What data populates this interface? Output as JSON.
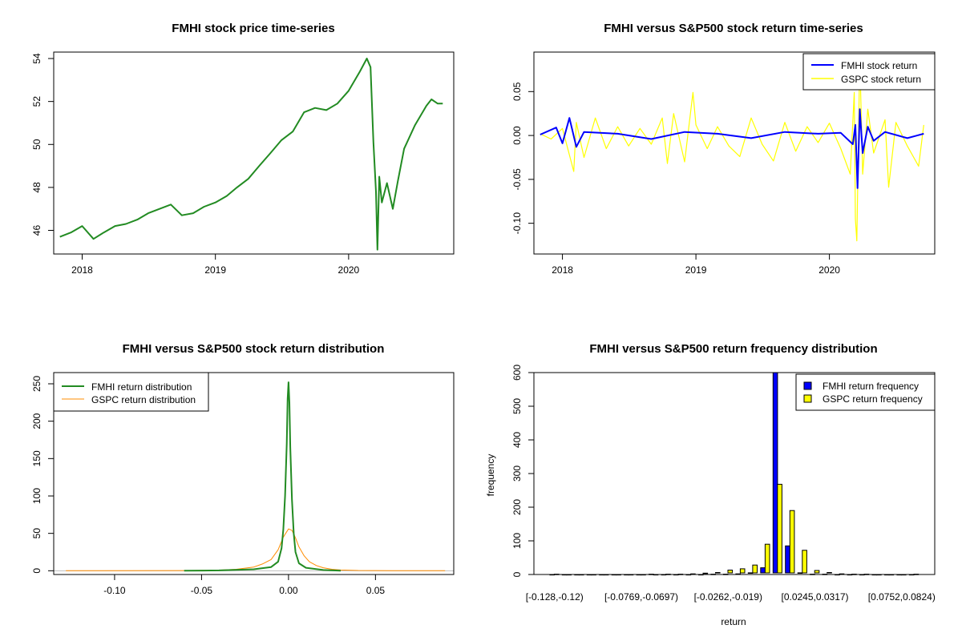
{
  "chart_data": [
    {
      "type": "line",
      "title": "FMHI stock price time-series",
      "xlabel": "",
      "ylabel": "",
      "x_ticks": [
        "2018",
        "2019",
        "2020"
      ],
      "y_ticks": [
        "46",
        "48",
        "50",
        "52",
        "54"
      ],
      "xlim": [
        "2017-10-15",
        "2020-10-15"
      ],
      "ylim": [
        44.9,
        54.3
      ],
      "series": [
        {
          "color": "#228B22",
          "x": [
            "2017-11-01",
            "2017-12-01",
            "2018-01-01",
            "2018-02-01",
            "2018-03-01",
            "2018-04-01",
            "2018-05-01",
            "2018-06-01",
            "2018-07-01",
            "2018-08-01",
            "2018-09-01",
            "2018-10-01",
            "2018-11-01",
            "2018-12-01",
            "2019-01-01",
            "2019-02-01",
            "2019-03-01",
            "2019-04-01",
            "2019-05-01",
            "2019-06-01",
            "2019-07-01",
            "2019-08-01",
            "2019-09-01",
            "2019-10-01",
            "2019-11-01",
            "2019-12-01",
            "2020-01-01",
            "2020-02-01",
            "2020-02-20",
            "2020-03-01",
            "2020-03-09",
            "2020-03-16",
            "2020-03-20",
            "2020-03-25",
            "2020-04-01",
            "2020-04-15",
            "2020-05-01",
            "2020-05-15",
            "2020-06-01",
            "2020-07-01",
            "2020-08-01",
            "2020-08-15",
            "2020-09-01",
            "2020-09-15"
          ],
          "y": [
            45.7,
            45.9,
            46.2,
            45.6,
            45.9,
            46.2,
            46.3,
            46.5,
            46.8,
            47.0,
            47.2,
            46.7,
            46.8,
            47.1,
            47.3,
            47.6,
            48.0,
            48.4,
            49.0,
            49.6,
            50.2,
            50.6,
            51.5,
            51.7,
            51.6,
            51.9,
            52.5,
            53.4,
            54.0,
            53.6,
            50.1,
            47.8,
            45.1,
            48.5,
            47.3,
            48.2,
            47.0,
            48.3,
            49.8,
            50.9,
            51.8,
            52.1,
            51.9,
            51.9
          ]
        }
      ]
    },
    {
      "type": "line",
      "title": "FMHI versus S&P500 stock return time-series",
      "xlabel": "",
      "ylabel": "",
      "x_ticks": [
        "2018",
        "2019",
        "2020"
      ],
      "y_ticks": [
        "-0.10",
        "-0.05",
        "0.00",
        "0.05"
      ],
      "xlim": [
        "2017-10-15",
        "2020-10-15"
      ],
      "ylim": [
        -0.135,
        0.095
      ],
      "legend": [
        "FMHI stock return",
        "GSPC stock return"
      ],
      "legend_position": "top-right",
      "series": [
        {
          "name": "GSPC stock return",
          "color": "#FFFF00",
          "x": [
            "2017-11-01",
            "2017-12-01",
            "2018-01-01",
            "2018-02-01",
            "2018-02-08",
            "2018-03-01",
            "2018-04-01",
            "2018-05-01",
            "2018-06-01",
            "2018-07-01",
            "2018-08-01",
            "2018-09-01",
            "2018-10-01",
            "2018-10-15",
            "2018-11-01",
            "2018-12-01",
            "2018-12-24",
            "2019-01-01",
            "2019-02-01",
            "2019-03-01",
            "2019-04-01",
            "2019-05-01",
            "2019-06-01",
            "2019-07-01",
            "2019-08-01",
            "2019-09-01",
            "2019-10-01",
            "2019-11-01",
            "2019-12-01",
            "2020-01-01",
            "2020-02-01",
            "2020-02-27",
            "2020-03-09",
            "2020-03-12",
            "2020-03-16",
            "2020-03-24",
            "2020-04-01",
            "2020-04-15",
            "2020-05-01",
            "2020-06-01",
            "2020-06-11",
            "2020-07-01",
            "2020-08-01",
            "2020-09-01",
            "2020-09-15"
          ],
          "y": [
            0.002,
            -0.004,
            0.008,
            -0.041,
            0.015,
            -0.025,
            0.02,
            -0.015,
            0.01,
            -0.012,
            0.008,
            -0.01,
            0.02,
            -0.032,
            0.025,
            -0.03,
            0.049,
            0.012,
            -0.015,
            0.01,
            -0.012,
            -0.024,
            0.02,
            -0.01,
            -0.029,
            0.015,
            -0.018,
            0.01,
            -0.008,
            0.014,
            -0.015,
            -0.044,
            0.049,
            -0.095,
            -0.12,
            0.09,
            -0.044,
            0.03,
            -0.02,
            0.018,
            -0.059,
            0.015,
            -0.012,
            -0.035,
            0.012
          ]
        },
        {
          "name": "FMHI stock return",
          "color": "#0000FF",
          "x": [
            "2017-11-01",
            "2017-12-15",
            "2018-01-01",
            "2018-01-20",
            "2018-02-08",
            "2018-03-01",
            "2018-06-01",
            "2018-09-01",
            "2018-12-01",
            "2019-03-01",
            "2019-06-01",
            "2019-09-01",
            "2019-12-01",
            "2020-02-01",
            "2020-03-05",
            "2020-03-12",
            "2020-03-18",
            "2020-03-24",
            "2020-04-01",
            "2020-04-15",
            "2020-05-01",
            "2020-06-01",
            "2020-08-01",
            "2020-09-15"
          ],
          "y": [
            0.001,
            0.009,
            -0.009,
            0.02,
            -0.013,
            0.004,
            0.002,
            -0.004,
            0.004,
            0.002,
            -0.003,
            0.004,
            0.002,
            0.003,
            -0.01,
            0.012,
            -0.06,
            0.03,
            -0.02,
            0.01,
            -0.006,
            0.004,
            -0.003,
            0.002
          ]
        }
      ]
    },
    {
      "type": "line",
      "title": "FMHI versus S&P500 stock return distribution",
      "xlabel": "",
      "ylabel": "",
      "x_ticks": [
        "-0.10",
        "-0.05",
        "0.00",
        "0.05"
      ],
      "y_ticks": [
        "0",
        "50",
        "100",
        "150",
        "200",
        "250"
      ],
      "xlim": [
        -0.135,
        0.095
      ],
      "ylim": [
        -5,
        265
      ],
      "legend": [
        "FMHI return distribution",
        "GSPC return distribution"
      ],
      "legend_position": "top-left",
      "series": [
        {
          "name": "GSPC return distribution",
          "color": "#FF8C00",
          "x": [
            -0.128,
            -0.06,
            -0.04,
            -0.03,
            -0.02,
            -0.015,
            -0.01,
            -0.006,
            -0.003,
            0.0,
            0.002,
            0.004,
            0.006,
            0.009,
            0.012,
            0.016,
            0.02,
            0.025,
            0.03,
            0.04,
            0.06,
            0.09
          ],
          "y": [
            0,
            0.2,
            0.8,
            2,
            5,
            9,
            15,
            28,
            45,
            56,
            54,
            44,
            32,
            20,
            12,
            7,
            4,
            2,
            1,
            0.4,
            0.1,
            0
          ]
        },
        {
          "name": "FMHI return distribution",
          "color": "#228B22",
          "x": [
            -0.06,
            -0.04,
            -0.02,
            -0.01,
            -0.006,
            -0.004,
            -0.003,
            -0.002,
            -0.001,
            -0.0005,
            0.0,
            0.0005,
            0.001,
            0.002,
            0.003,
            0.004,
            0.006,
            0.01,
            0.02,
            0.03
          ],
          "y": [
            0,
            0.5,
            2,
            5,
            12,
            30,
            55,
            100,
            170,
            230,
            252,
            225,
            165,
            95,
            50,
            25,
            10,
            4,
            1,
            0
          ]
        }
      ]
    },
    {
      "type": "bar",
      "title": "FMHI versus S&P500 return frequency distribution",
      "xlabel": "return",
      "ylabel": "frequency",
      "x_ticks": [
        "[-0.128,-0.12)",
        "[-0.0769,-0.0697)",
        "[-0.0262,-0.019)",
        "[0.0245,0.0317)",
        "[0.0752,0.0824)"
      ],
      "x_tick_bins": [
        0,
        7,
        14,
        21,
        28
      ],
      "y_ticks": [
        "0",
        "100",
        "200",
        "300",
        "400",
        "500",
        "600"
      ],
      "ylim": [
        0,
        600
      ],
      "legend": [
        "FMHI return frequency",
        "GSPC return frequency"
      ],
      "legend_position": "top-right",
      "categories": [
        "[-0.128,-0.12)",
        "[-0.12,-0.113)",
        "[-0.113,-0.106)",
        "[-0.106,-0.0986)",
        "[-0.0986,-0.0914)",
        "[-0.0914,-0.0841)",
        "[-0.0841,-0.0769)",
        "[-0.0769,-0.0697)",
        "[-0.0697,-0.0624)",
        "[-0.0624,-0.0552)",
        "[-0.0552,-0.0479)",
        "[-0.0479,-0.0407)",
        "[-0.0407,-0.0335)",
        "[-0.0335,-0.0262)",
        "[-0.0262,-0.019)",
        "[-0.019,-0.0117)",
        "[-0.0117,-0.00449)",
        "[-0.00449,0.00275)",
        "[0.00275,0.01)",
        "[0.01,0.0172)",
        "[0.0172,0.0245)",
        "[0.0245,0.0317)",
        "[0.0317,0.039)",
        "[0.039,0.0462)",
        "[0.0462,0.0534)",
        "[0.0534,0.0607)",
        "[0.0607,0.0679)",
        "[0.0679,0.0752)",
        "[0.0752,0.0824)",
        "[0.0824,0.0896)"
      ],
      "series": [
        {
          "name": "FMHI return frequency",
          "color": "#0000FF",
          "values": [
            0,
            0,
            0,
            0,
            0,
            0,
            0,
            0,
            1,
            0,
            0,
            0,
            0,
            1,
            1,
            2,
            5,
            20,
            600,
            85,
            5,
            1,
            1,
            0,
            0,
            0,
            0,
            0,
            0,
            0
          ]
        },
        {
          "name": "GSPC return frequency",
          "color": "#FFFF00",
          "values": [
            1,
            0,
            0,
            0,
            0,
            0,
            0,
            0,
            0,
            1,
            1,
            2,
            4,
            6,
            13,
            17,
            28,
            90,
            268,
            190,
            72,
            12,
            6,
            2,
            1,
            1,
            0,
            0,
            0,
            1
          ]
        }
      ]
    }
  ]
}
